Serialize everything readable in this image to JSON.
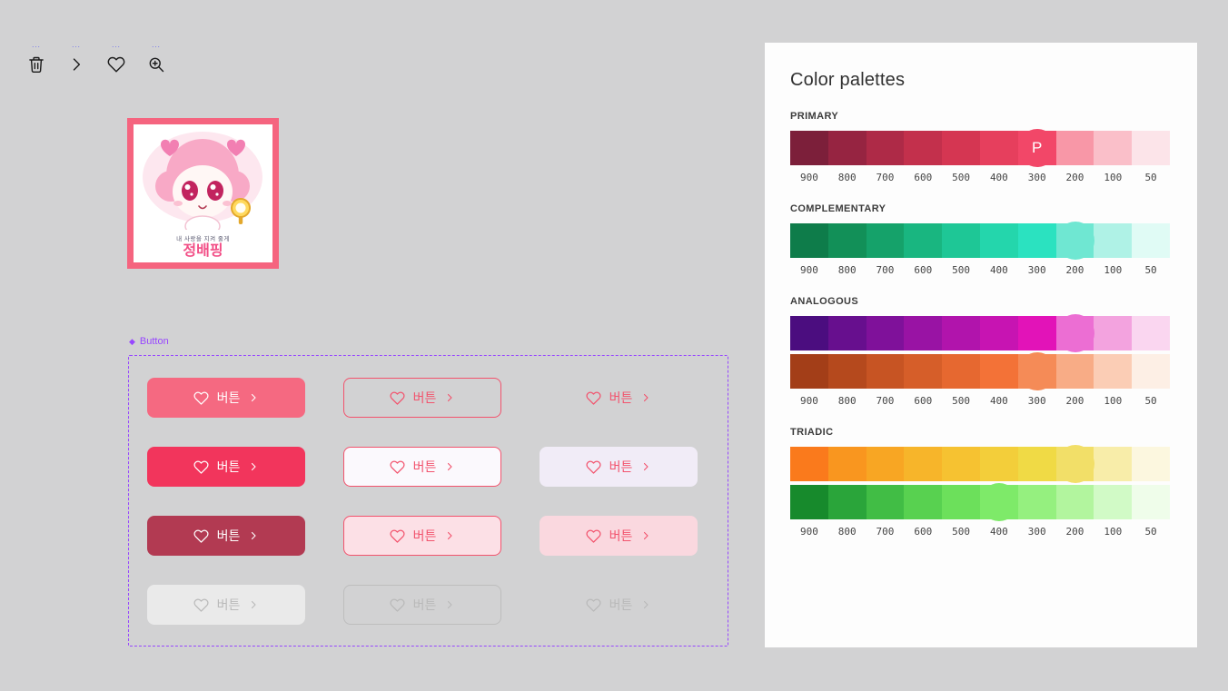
{
  "canvas": {
    "toolbar": {
      "labels": [
        "...",
        "...",
        "...",
        "..."
      ],
      "tools": [
        "trash",
        "chevron-right",
        "heart",
        "zoom-in"
      ]
    },
    "sticker": {
      "caption_small": "내 사랑을 지켜 줄게",
      "caption_name": "정배핑",
      "border_color": "#F5647F"
    },
    "button_section": {
      "section_label": "Button",
      "button_label": "버튼",
      "accent_color": "#F2355C",
      "variants": [
        {
          "name": "filled-400",
          "bg": "#F56981",
          "fg": "#FFFFFF",
          "border": ""
        },
        {
          "name": "outline-400",
          "bg": "transparent",
          "fg": "#F2536D",
          "border": "#F2536D"
        },
        {
          "name": "text-400",
          "bg": "transparent",
          "fg": "#F2536D",
          "border": ""
        },
        {
          "name": "filled-500",
          "bg": "#F2355C",
          "fg": "#FFFFFF",
          "border": ""
        },
        {
          "name": "outline-light",
          "bg": "#FBF9FD",
          "fg": "#F2536D",
          "border": "#F2536D"
        },
        {
          "name": "tonal-lavender",
          "bg": "#F1ECF7",
          "fg": "#F2536D",
          "border": ""
        },
        {
          "name": "filled-800",
          "bg": "#B23A52",
          "fg": "#FFFFFF",
          "border": ""
        },
        {
          "name": "outline-tonal",
          "bg": "#FCE0E6",
          "fg": "#F2536D",
          "border": "#F2536D"
        },
        {
          "name": "tonal-pink",
          "bg": "#FAD8DF",
          "fg": "#F2536D",
          "border": ""
        },
        {
          "name": "disabled-filled",
          "bg": "#EAEAEA",
          "fg": "#B9B9B9",
          "border": ""
        },
        {
          "name": "disabled-outline",
          "bg": "transparent",
          "fg": "#B9B9B9",
          "border": "#BDBDBD"
        },
        {
          "name": "disabled-text",
          "bg": "transparent",
          "fg": "#B9B9B9",
          "border": ""
        }
      ]
    }
  },
  "panel": {
    "title": "Color palettes",
    "background": "#FDFDFD",
    "ticks": [
      "900",
      "800",
      "700",
      "600",
      "500",
      "400",
      "300",
      "200",
      "100",
      "50"
    ],
    "palettes": [
      {
        "name": "PRIMARY",
        "rows": [
          {
            "colors": [
              "#7C1F3A",
              "#962441",
              "#AE2A47",
              "#C3304C",
              "#D53652",
              "#E63F5D",
              "#F24768",
              "#F897A7",
              "#FABFC9",
              "#FCE4E9"
            ],
            "marker_index": 6,
            "marker_label": "P"
          }
        ]
      },
      {
        "name": "COMPLEMENTARY",
        "rows": [
          {
            "colors": [
              "#0E7C4A",
              "#129058",
              "#15A26A",
              "#19B680",
              "#1EC796",
              "#24D6AC",
              "#2BE2C0",
              "#6FE7D2",
              "#AFF2E6",
              "#E0FBF5"
            ],
            "marker_index": 7,
            "marker_label": ""
          }
        ]
      },
      {
        "name": "ANALOGOUS",
        "rows": [
          {
            "colors": [
              "#4B0D7F",
              "#670F8E",
              "#7F119A",
              "#9913A4",
              "#B114AC",
              "#C714B2",
              "#E213B8",
              "#EC6ED3",
              "#F3A3DF",
              "#FAD6F0"
            ],
            "marker_index": 7,
            "marker_label": ""
          },
          {
            "colors": [
              "#A33E18",
              "#B5491D",
              "#C75423",
              "#D65E29",
              "#E66830",
              "#F37237",
              "#F58B57",
              "#F8AC86",
              "#FBCDB5",
              "#FDEFE5"
            ],
            "marker_index": 6,
            "marker_label": ""
          }
        ]
      },
      {
        "name": "TRIADIC",
        "rows": [
          {
            "colors": [
              "#FA7A1C",
              "#F9961F",
              "#F8A623",
              "#F7B52A",
              "#F6C231",
              "#F3CE3A",
              "#F0DA45",
              "#F2DF68",
              "#F8EDA9",
              "#FCF7DF"
            ],
            "marker_index": 7,
            "marker_label": ""
          },
          {
            "colors": [
              "#178A2C",
              "#2AA53A",
              "#41BD45",
              "#58D150",
              "#6CE05B",
              "#7EEA69",
              "#95F07F",
              "#B2F59E",
              "#D1FAC6",
              "#EFFDEA"
            ],
            "marker_index": 5,
            "marker_label": ""
          }
        ]
      }
    ]
  }
}
